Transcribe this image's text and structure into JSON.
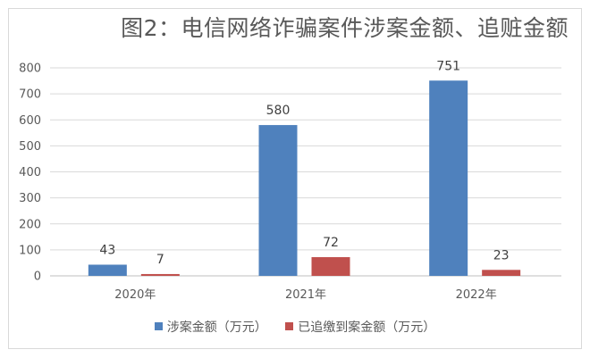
{
  "chart_data": {
    "type": "bar",
    "title": "图2：电信网络诈骗案件涉案金额、追赃金额",
    "categories": [
      "2020年",
      "2021年",
      "2022年"
    ],
    "series": [
      {
        "name": "涉案金额（万元）",
        "color": "#4f81bd",
        "values": [
          43,
          580,
          751
        ]
      },
      {
        "name": "已追缴到案金额（万元）",
        "color": "#c0504d",
        "values": [
          7,
          72,
          23
        ]
      }
    ],
    "ylim": [
      0,
      800
    ],
    "yticks": [
      0,
      100,
      200,
      300,
      400,
      500,
      600,
      700,
      800
    ],
    "xlabel": "",
    "ylabel": "",
    "grid": true,
    "legend_position": "bottom"
  }
}
